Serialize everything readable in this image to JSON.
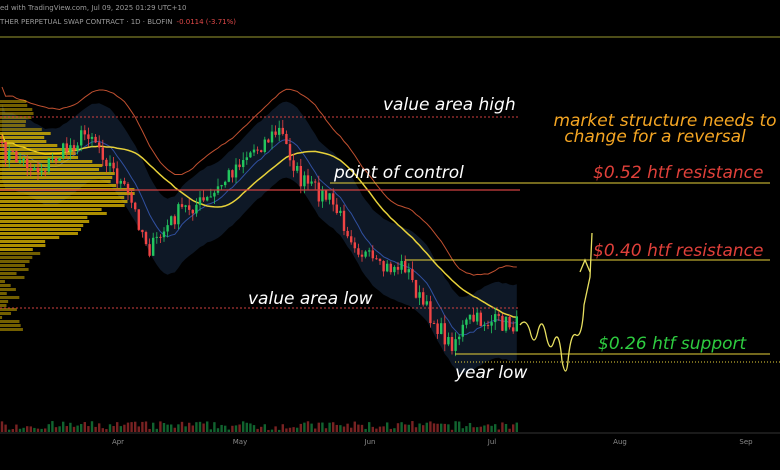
{
  "header": {
    "source": "ed with TradingView.com, Jul 09, 2025 01:29 UTC+10",
    "instrument": "THER PERPETUAL SWAP CONTRACT · 1D · BLOFIN",
    "change": "-0.0114 (-3.71%)"
  },
  "annotations": {
    "value_area_high": "value area high",
    "point_of_control": "point of control",
    "value_area_low": "value area low",
    "year_low": "year low",
    "market_structure": [
      "market structure needs to",
      "change for a reversal"
    ],
    "resistance_high": "$0.52 htf resistance",
    "resistance_low": "$0.40 htf resistance",
    "support": "$0.26 htf support"
  },
  "x_axis": {
    "labels": [
      "Apr",
      "May",
      "Jun",
      "Jul",
      "Aug",
      "Sep"
    ]
  }
}
